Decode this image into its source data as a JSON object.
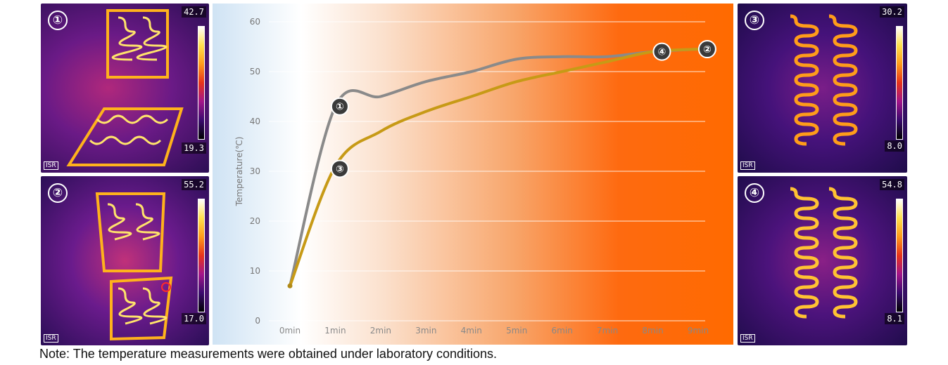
{
  "chart_data": {
    "type": "line",
    "title": "",
    "xlabel": "",
    "ylabel": "Temperature(℃)",
    "categories": [
      "0min",
      "1min",
      "2min",
      "3min",
      "4min",
      "5min",
      "6min",
      "7min",
      "8min",
      "9min"
    ],
    "ylim": [
      0,
      60
    ],
    "yticks": [
      0,
      10,
      20,
      30,
      40,
      50,
      60
    ],
    "grid": true,
    "series": [
      {
        "name": "",
        "color": "#8a8a8a",
        "values": [
          7,
          43,
          45,
          48,
          50,
          52.5,
          53,
          53,
          54,
          54.5
        ]
      },
      {
        "name": "",
        "color": "#c79a16",
        "values": [
          7,
          31,
          38,
          42,
          45,
          48,
          50,
          52,
          54,
          54.5
        ]
      }
    ],
    "annotations": [
      {
        "label": "①",
        "x": 1.1,
        "y": 43
      },
      {
        "label": "③",
        "x": 1.1,
        "y": 30.5
      },
      {
        "label": "④",
        "x": 8.2,
        "y": 54
      },
      {
        "label": "②",
        "x": 9.2,
        "y": 54.5
      }
    ]
  },
  "thermal_images": [
    {
      "badge": "①",
      "scale_max": "42.7",
      "scale_min": "19.3",
      "tag": "ISR"
    },
    {
      "badge": "②",
      "scale_max": "55.2",
      "scale_min": "17.0",
      "tag": "ISR"
    },
    {
      "badge": "③",
      "scale_max": "30.2",
      "scale_min": "8.0",
      "tag": "ISR"
    },
    {
      "badge": "④",
      "scale_max": "54.8",
      "scale_min": "8.1",
      "tag": "ISR"
    }
  ],
  "note": "Note: The temperature measurements were obtained under laboratory conditions."
}
